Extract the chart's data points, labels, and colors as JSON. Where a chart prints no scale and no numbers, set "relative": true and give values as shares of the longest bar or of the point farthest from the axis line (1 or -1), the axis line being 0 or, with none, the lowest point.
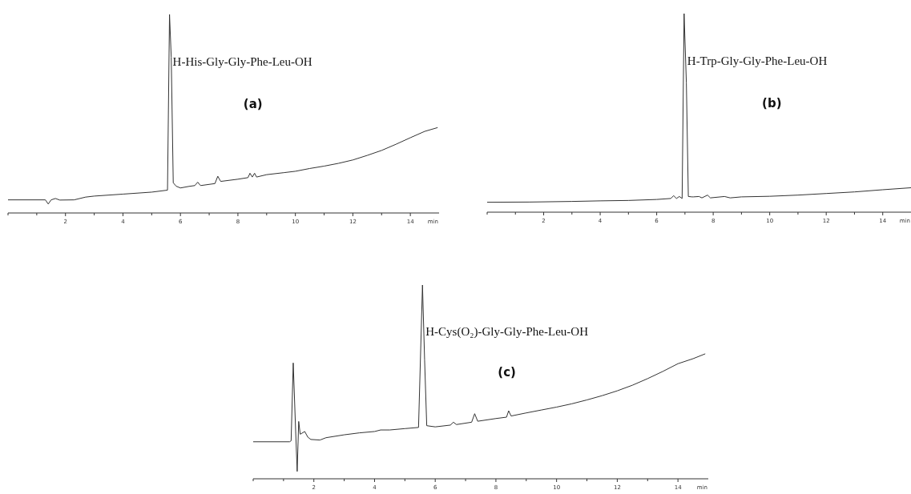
{
  "chart_data": [
    {
      "type": "line",
      "relative": true,
      "title": "H-His-Gly-Gly-Phe-Leu-OH",
      "annotations": [
        "(a)"
      ],
      "xlabel": "min",
      "xlim": [
        0,
        15
      ],
      "xticks": [
        {
          "value": 0,
          "label": null
        },
        {
          "value": 1,
          "label": null
        },
        2,
        {
          "value": 3,
          "label": null
        },
        4,
        {
          "value": 5,
          "label": null
        },
        6,
        {
          "value": 7,
          "label": null
        },
        8,
        {
          "value": 9,
          "label": null
        },
        10,
        {
          "value": 11,
          "label": null
        },
        12,
        {
          "value": 13,
          "label": null
        },
        14
      ],
      "tick_labels": "x",
      "color": "#333333",
      "x": [
        0,
        1.3,
        1.4,
        1.5,
        1.65,
        1.8,
        2.3,
        2.7,
        3.0,
        4.0,
        5.0,
        5.55,
        5.62,
        5.68,
        5.75,
        5.85,
        6.0,
        6.3,
        6.5,
        6.6,
        6.7,
        7.2,
        7.3,
        7.4,
        8.0,
        8.35,
        8.42,
        8.5,
        8.58,
        8.65,
        9.0,
        9.6,
        10.0,
        10.5,
        11.0,
        11.5,
        12.0,
        12.5,
        13.0,
        13.5,
        14.0,
        14.5,
        14.95
      ],
      "values": [
        0.066,
        0.066,
        0.045,
        0.066,
        0.073,
        0.065,
        0.066,
        0.08,
        0.085,
        0.095,
        0.105,
        0.115,
        1,
        0.784,
        0.152,
        0.135,
        0.126,
        0.134,
        0.138,
        0.155,
        0.138,
        0.148,
        0.185,
        0.159,
        0.17,
        0.178,
        0.2,
        0.181,
        0.2,
        0.181,
        0.193,
        0.203,
        0.21,
        0.224,
        0.236,
        0.25,
        0.267,
        0.29,
        0.315,
        0.346,
        0.379,
        0.411,
        0.43
      ]
    },
    {
      "type": "line",
      "relative": true,
      "title": "H-Trp-Gly-Gly-Phe-Leu-OH",
      "annotations": [
        "(b)"
      ],
      "xlabel": "min",
      "xlim": [
        0,
        15
      ],
      "xticks": [
        {
          "value": 0,
          "label": null
        },
        {
          "value": 1,
          "label": null
        },
        2,
        {
          "value": 3,
          "label": null
        },
        4,
        {
          "value": 5,
          "label": null
        },
        6,
        {
          "value": 7,
          "label": null
        },
        8,
        {
          "value": 9,
          "label": null
        },
        10,
        {
          "value": 11,
          "label": null
        },
        12,
        {
          "value": 13,
          "label": null
        },
        14
      ],
      "tick_labels": "x",
      "color": "#333333",
      "x": [
        0,
        1.5,
        3,
        4,
        5,
        6,
        6.5,
        6.6,
        6.7,
        6.8,
        6.9,
        6.97,
        7.05,
        7.12,
        7.25,
        7.3,
        7.5,
        7.6,
        7.8,
        7.9,
        8.4,
        8.6,
        9,
        10,
        11,
        12,
        13,
        14,
        15
      ],
      "values": [
        0.05,
        0.051,
        0.054,
        0.057,
        0.059,
        0.064,
        0.069,
        0.083,
        0.069,
        0.079,
        0.069,
        1,
        0.652,
        0.079,
        0.077,
        0.077,
        0.079,
        0.072,
        0.086,
        0.072,
        0.079,
        0.072,
        0.077,
        0.08,
        0.086,
        0.094,
        0.102,
        0.113,
        0.123
      ]
    },
    {
      "type": "line",
      "relative": true,
      "title": "H-Cys(O₂)-Gly-Gly-Phe-Leu-OH",
      "annotations": [
        "(c)"
      ],
      "xlabel": "min",
      "xlim": [
        0,
        15
      ],
      "xticks": [
        {
          "value": 0,
          "label": null
        },
        {
          "value": 1,
          "label": null
        },
        2,
        {
          "value": 3,
          "label": null
        },
        4,
        {
          "value": 5,
          "label": null
        },
        6,
        {
          "value": 7,
          "label": null
        },
        8,
        {
          "value": 9,
          "label": null
        },
        10,
        {
          "value": 11,
          "label": null
        },
        12,
        {
          "value": 13,
          "label": null
        },
        14
      ],
      "tick_labels": "x",
      "color": "#333333",
      "x": [
        0,
        1.2,
        1.25,
        1.32,
        1.4,
        1.45,
        1.5,
        1.55,
        1.7,
        1.8,
        1.9,
        2.2,
        2.4,
        3.0,
        3.5,
        4.0,
        4.2,
        4.5,
        5.0,
        5.45,
        5.58,
        5.65,
        5.72,
        6.0,
        6.5,
        6.6,
        6.7,
        7.2,
        7.3,
        7.4,
        8.0,
        8.35,
        8.42,
        8.5,
        9.0,
        9.5,
        10.0,
        10.5,
        11.0,
        11.5,
        12.0,
        12.5,
        13.0,
        13.5,
        14.0,
        14.5,
        14.9
      ],
      "values": [
        0.191,
        0.191,
        0.196,
        0.598,
        0.244,
        0.038,
        0.296,
        0.23,
        0.244,
        0.215,
        0.203,
        0.2,
        0.212,
        0.227,
        0.237,
        0.244,
        0.252,
        0.252,
        0.259,
        0.265,
        1,
        0.613,
        0.274,
        0.268,
        0.277,
        0.292,
        0.28,
        0.292,
        0.336,
        0.297,
        0.311,
        0.318,
        0.351,
        0.324,
        0.34,
        0.355,
        0.37,
        0.387,
        0.407,
        0.429,
        0.454,
        0.483,
        0.517,
        0.554,
        0.594,
        0.62,
        0.645
      ]
    }
  ]
}
